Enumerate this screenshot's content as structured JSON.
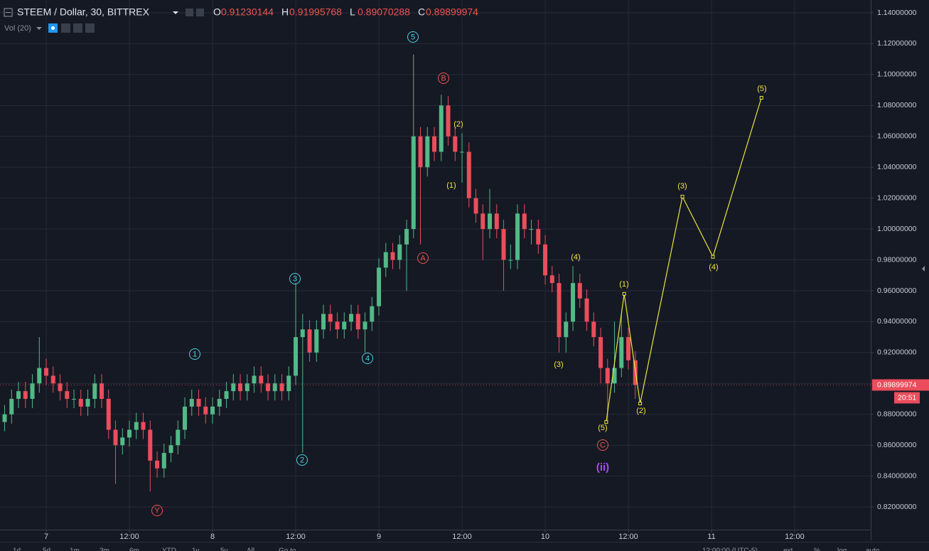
{
  "chart_data": {
    "type": "candlestick",
    "title": "STEEM / Dollar, 30, BITTREX",
    "ohlc_header": [
      {
        "key": "O",
        "value": 0.91230144
      },
      {
        "key": "H",
        "value": 0.91995768
      },
      {
        "key": "L",
        "value": 0.89070288
      },
      {
        "key": "C",
        "value": 0.89899974
      }
    ],
    "indicator": "Vol (20)",
    "up_color": "#53b987",
    "down_color": "#eb4d5c",
    "grid": true,
    "xlim": [
      -6.67,
      118.97
    ],
    "xticks": [
      {
        "value": 0,
        "label": "7"
      },
      {
        "value": 12,
        "label": "12:00"
      },
      {
        "value": 24,
        "label": "8"
      },
      {
        "value": 36,
        "label": "12:00"
      },
      {
        "value": 48,
        "label": "9"
      },
      {
        "value": 60,
        "label": "12:00"
      },
      {
        "value": 72,
        "label": "10"
      },
      {
        "value": 84,
        "label": "12:00"
      },
      {
        "value": 96,
        "label": "11"
      },
      {
        "value": 108,
        "label": "12:00"
      }
    ],
    "ylim": [
      0.8053,
      1.1483
    ],
    "yticks": [
      {
        "value": 0.82,
        "label": "0.82000000"
      },
      {
        "value": 0.84,
        "label": "0.84000000"
      },
      {
        "value": 0.86,
        "label": "0.86000000"
      },
      {
        "value": 0.88,
        "label": "0.88000000"
      },
      {
        "value": 0.9,
        "label": "0.90000000"
      },
      {
        "value": 0.92,
        "label": "0.92000000"
      },
      {
        "value": 0.94,
        "label": "0.94000000"
      },
      {
        "value": 0.96,
        "label": "0.96000000"
      },
      {
        "value": 0.98,
        "label": "0.98000000"
      },
      {
        "value": 1.0,
        "label": "1.00000000"
      },
      {
        "value": 1.02,
        "label": "1.02000000"
      },
      {
        "value": 1.04,
        "label": "1.04000000"
      },
      {
        "value": 1.06,
        "label": "1.06000000"
      },
      {
        "value": 1.08,
        "label": "1.08000000"
      },
      {
        "value": 1.1,
        "label": "1.10000000"
      },
      {
        "value": 1.12,
        "label": "1.12000000"
      },
      {
        "value": 1.14,
        "label": "1.14000000"
      }
    ],
    "x": [
      -6,
      -5,
      -4,
      -3,
      -2,
      -1,
      0,
      1,
      2,
      3,
      4,
      5,
      6,
      7,
      8,
      9,
      10,
      11,
      12,
      13,
      14,
      15,
      16,
      17,
      18,
      19,
      20,
      21,
      22,
      23,
      24,
      25,
      26,
      27,
      28,
      29,
      30,
      31,
      32,
      33,
      34,
      35,
      36,
      37,
      38,
      39,
      40,
      41,
      42,
      43,
      44,
      45,
      46,
      47,
      48,
      49,
      50,
      51,
      52,
      53,
      54,
      55,
      56,
      57,
      58,
      59,
      60,
      61,
      62,
      63,
      64,
      65,
      66,
      67,
      68,
      69,
      70,
      71,
      72,
      73,
      74,
      75,
      76,
      77,
      78,
      79,
      80,
      81,
      82,
      83,
      84,
      85
    ],
    "open": [
      0.875,
      0.88,
      0.89,
      0.895,
      0.89,
      0.9,
      0.91,
      0.905,
      0.9,
      0.895,
      0.89,
      0.89,
      0.885,
      0.89,
      0.9,
      0.89,
      0.87,
      0.86,
      0.865,
      0.87,
      0.875,
      0.87,
      0.85,
      0.845,
      0.855,
      0.86,
      0.87,
      0.885,
      0.89,
      0.885,
      0.88,
      0.885,
      0.89,
      0.895,
      0.9,
      0.895,
      0.9,
      0.905,
      0.9,
      0.895,
      0.9,
      0.895,
      0.905,
      0.93,
      0.935,
      0.92,
      0.935,
      0.945,
      0.94,
      0.935,
      0.94,
      0.945,
      0.935,
      0.94,
      0.95,
      0.975,
      0.985,
      0.98,
      0.99,
      1.0,
      1.06,
      1.04,
      1.06,
      1.05,
      1.08,
      1.06,
      1.05,
      1.05,
      1.02,
      1.01,
      1.0,
      1.01,
      1.0,
      0.98,
      0.98,
      1.01,
      1.0,
      1.0,
      0.99,
      0.97,
      0.965,
      0.93,
      0.94,
      0.965,
      0.955,
      0.94,
      0.93,
      0.91,
      0.9,
      0.91,
      0.93,
      0.915
    ],
    "high": [
      0.886,
      0.896,
      0.901,
      0.901,
      0.906,
      0.93,
      0.916,
      0.911,
      0.906,
      0.901,
      0.896,
      0.896,
      0.896,
      0.906,
      0.906,
      0.896,
      0.876,
      0.871,
      0.876,
      0.881,
      0.881,
      0.876,
      0.856,
      0.861,
      0.866,
      0.876,
      0.891,
      0.896,
      0.896,
      0.891,
      0.891,
      0.896,
      0.901,
      0.906,
      0.906,
      0.906,
      0.911,
      0.911,
      0.906,
      0.906,
      0.906,
      0.911,
      0.965,
      0.945,
      0.941,
      0.941,
      0.951,
      0.951,
      0.946,
      0.946,
      0.951,
      0.951,
      0.946,
      0.956,
      0.981,
      0.991,
      0.991,
      0.996,
      1.006,
      1.113,
      1.066,
      1.066,
      1.066,
      1.087,
      1.086,
      1.066,
      1.062,
      1.056,
      1.026,
      1.016,
      1.026,
      1.016,
      1.006,
      0.99,
      1.016,
      1.016,
      1.006,
      1.006,
      0.996,
      0.976,
      0.971,
      0.946,
      0.976,
      0.971,
      0.961,
      0.946,
      0.936,
      0.916,
      0.94,
      0.945,
      0.936,
      0.921
    ],
    "low": [
      0.869,
      0.874,
      0.884,
      0.884,
      0.884,
      0.894,
      0.899,
      0.894,
      0.889,
      0.884,
      0.884,
      0.879,
      0.879,
      0.884,
      0.884,
      0.864,
      0.835,
      0.854,
      0.859,
      0.864,
      0.864,
      0.83,
      0.839,
      0.839,
      0.849,
      0.854,
      0.864,
      0.879,
      0.879,
      0.874,
      0.874,
      0.879,
      0.884,
      0.889,
      0.889,
      0.889,
      0.894,
      0.894,
      0.889,
      0.889,
      0.889,
      0.889,
      0.899,
      0.855,
      0.914,
      0.914,
      0.929,
      0.934,
      0.929,
      0.929,
      0.934,
      0.929,
      0.92,
      0.934,
      0.944,
      0.969,
      0.974,
      0.974,
      0.96,
      0.994,
      0.99,
      1.034,
      1.044,
      1.044,
      1.054,
      1.044,
      1.03,
      1.014,
      1.004,
      0.98,
      0.994,
      0.994,
      0.96,
      0.974,
      0.974,
      0.994,
      0.99,
      0.984,
      0.964,
      0.959,
      0.92,
      0.92,
      0.934,
      0.949,
      0.934,
      0.924,
      0.9,
      0.875,
      0.894,
      0.904,
      0.909,
      0.89
    ],
    "close": [
      0.88,
      0.89,
      0.895,
      0.89,
      0.9,
      0.91,
      0.905,
      0.9,
      0.895,
      0.89,
      0.89,
      0.885,
      0.89,
      0.9,
      0.89,
      0.87,
      0.86,
      0.865,
      0.87,
      0.875,
      0.87,
      0.85,
      0.845,
      0.855,
      0.86,
      0.87,
      0.885,
      0.89,
      0.885,
      0.88,
      0.885,
      0.89,
      0.895,
      0.9,
      0.895,
      0.9,
      0.905,
      0.9,
      0.895,
      0.9,
      0.895,
      0.905,
      0.93,
      0.935,
      0.92,
      0.935,
      0.945,
      0.94,
      0.935,
      0.94,
      0.945,
      0.935,
      0.94,
      0.95,
      0.975,
      0.985,
      0.98,
      0.99,
      1.0,
      1.06,
      1.04,
      1.06,
      1.05,
      1.08,
      1.06,
      1.05,
      1.05,
      1.02,
      1.01,
      1.0,
      1.01,
      1.0,
      0.98,
      0.98,
      1.01,
      1.0,
      1.0,
      0.99,
      0.97,
      0.965,
      0.93,
      0.94,
      0.965,
      0.955,
      0.94,
      0.93,
      0.91,
      0.9,
      0.91,
      0.93,
      0.915,
      0.899
    ],
    "last_price": 0.89899974,
    "countdown": "20:51",
    "projection": {
      "color": "#e8e83a",
      "x": [
        80.8,
        83.4,
        85.7,
        91.8,
        96.2,
        103.2
      ],
      "y": [
        0.875,
        0.958,
        0.887,
        1.021,
        0.982,
        1.085
      ]
    },
    "annotation_groups": [
      {
        "color": "#4dd0e1",
        "circled": true,
        "labels": [
          "5",
          "3",
          "1",
          "4",
          "2"
        ]
      },
      {
        "color": "#ef5350",
        "circled": true,
        "labels": [
          "B",
          "A",
          "C",
          "Y"
        ]
      },
      {
        "color": "#f5e342",
        "circled": false,
        "labels": [
          "(2)",
          "(1)",
          "(4)",
          "(3)",
          "(1)",
          "(5)",
          "(2)",
          "(3)",
          "(4)",
          "(5)"
        ]
      },
      {
        "color": "#a44ff0",
        "circled": false,
        "labels": [
          "(ii)"
        ]
      }
    ],
    "toolbar": [
      "1d",
      "5d",
      "1m",
      "3m",
      "6m",
      "YTD",
      "1y",
      "5y",
      "All",
      "Go to..."
    ],
    "timezone": "12:00:00 (UTC-5)",
    "scale_options": [
      "ext",
      "%",
      "log",
      "auto"
    ]
  }
}
